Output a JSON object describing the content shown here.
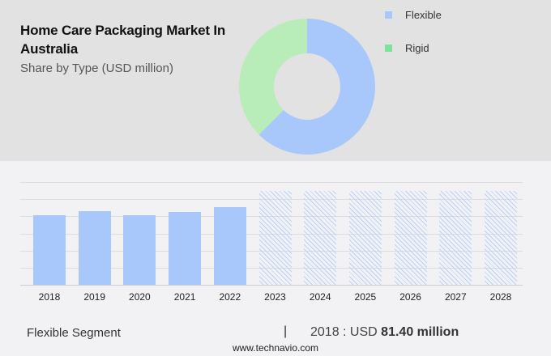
{
  "header": {
    "title": "Home Care Packaging Market In Australia",
    "subtitle": "Share by Type (USD million)"
  },
  "legend": [
    {
      "label": "Flexible",
      "color": "#a8c8fc"
    },
    {
      "label": "Rigid",
      "color": "#7ee29a"
    }
  ],
  "footer": {
    "segment_label": "Flexible Segment",
    "separator": "|",
    "value_prefix": "2018 : USD",
    "value_bold": "81.40 million",
    "url": "www.technavio.com"
  },
  "colors": {
    "flexible": "#a8c8fc",
    "rigid_donut": "#b8ecb8",
    "rigid_legend": "#7ee29a",
    "top_bg": "#e2e2e2",
    "bottom_bg": "#f2f2f4"
  },
  "chart_data": [
    {
      "type": "pie",
      "variant": "donut",
      "title": "Home Care Packaging Market In Australia",
      "subtitle": "Share by Type (USD million)",
      "categories": [
        "Flexible",
        "Rigid"
      ],
      "values": [
        62.5,
        37.5
      ],
      "unit": "% share (estimated from arc angles)",
      "legend_position": "right"
    },
    {
      "type": "bar",
      "title": "Flexible Segment",
      "categories": [
        "2018",
        "2019",
        "2020",
        "2021",
        "2022",
        "2023",
        "2024",
        "2025",
        "2026",
        "2027",
        "2028"
      ],
      "series": [
        {
          "name": "Flexible (actual)",
          "values": [
            81.4,
            86.1,
            81.4,
            85.6,
            90.9,
            null,
            null,
            null,
            null,
            null,
            null
          ]
        },
        {
          "name": "Flexible (forecast, hatched)",
          "values": [
            null,
            null,
            null,
            null,
            null,
            109.8,
            109.8,
            109.8,
            109.8,
            109.8,
            109.8
          ]
        }
      ],
      "annotation": "2018 : USD 81.40 million",
      "xlabel": "",
      "ylabel": "",
      "ylim": [
        0,
        120
      ],
      "grid": true,
      "y_ticks_labeled": false
    }
  ]
}
